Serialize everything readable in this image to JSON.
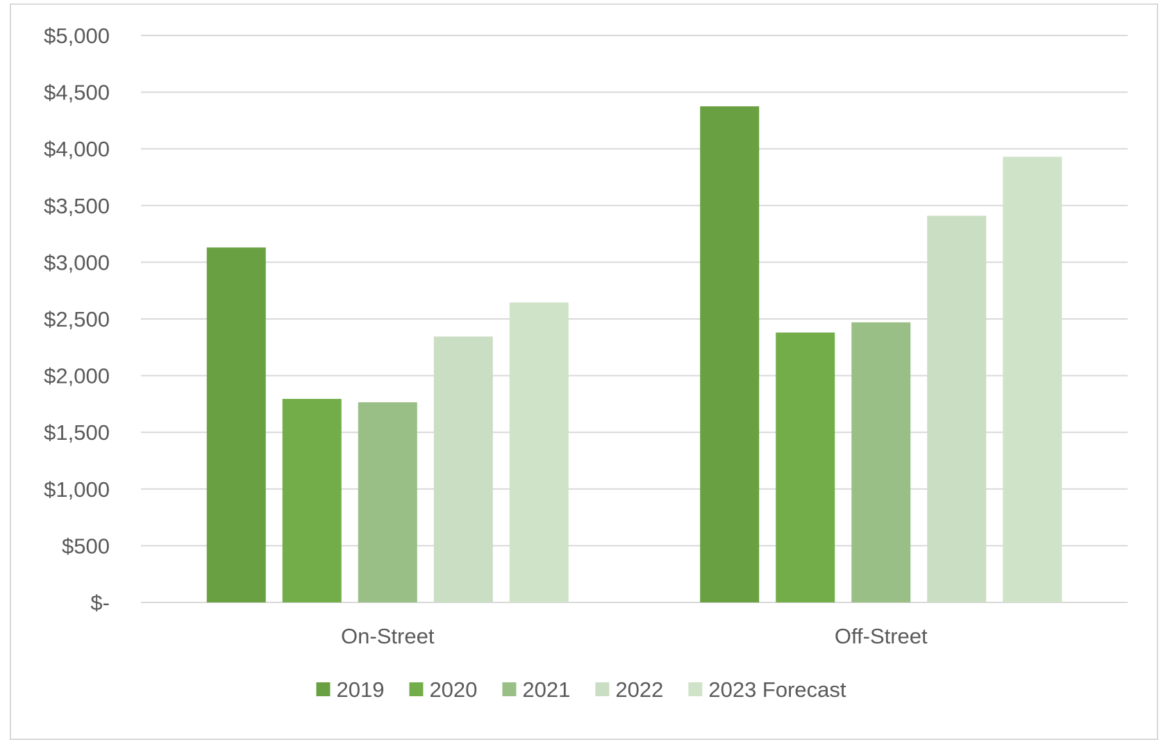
{
  "chart_data": {
    "type": "bar",
    "categories": [
      "On-Street",
      "Off-Street"
    ],
    "series": [
      {
        "name": "2019",
        "values": [
          3130,
          4375
        ],
        "color": "#69a042"
      },
      {
        "name": "2020",
        "values": [
          1795,
          2380
        ],
        "color": "#72ad4a"
      },
      {
        "name": "2021",
        "values": [
          1765,
          2470
        ],
        "color": "#99bf86"
      },
      {
        "name": "2022",
        "values": [
          2345,
          3410
        ],
        "color": "#cadec4"
      },
      {
        "name": "2023 Forecast",
        "values": [
          2645,
          3930
        ],
        "color": "#cfe3c8"
      }
    ],
    "ylim": [
      0,
      5000
    ],
    "yticks": [
      0,
      500,
      1000,
      1500,
      2000,
      2500,
      3000,
      3500,
      4000,
      4500,
      5000
    ],
    "ytick_labels": [
      "$-",
      "$500",
      "$1,000",
      "$1,500",
      "$2,000",
      "$2,500",
      "$3,000",
      "$3,500",
      "$4,000",
      "$4,500",
      "$5,000"
    ],
    "title": "",
    "xlabel": "",
    "ylabel": "",
    "grid": true,
    "legend_position": "bottom",
    "gridline_color": "#d9d9d9",
    "text_color": "#595959"
  }
}
